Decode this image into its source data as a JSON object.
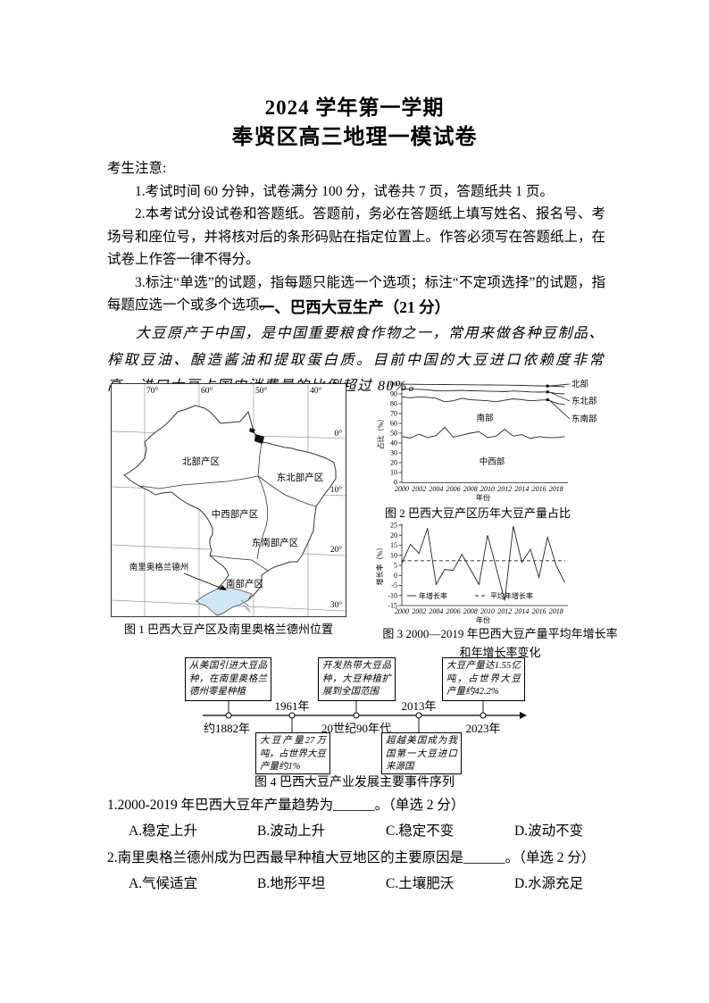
{
  "header": {
    "title_line1": "2024 学年第一学期",
    "title_line2": "奉贤区高三地理一模试卷"
  },
  "notice": {
    "heading": "考生注意:",
    "items": [
      "1.考试时间 60 分钟，试卷满分 100 分，试卷共 7 页，答题纸共 1 页。",
      "2.本考试分设试卷和答题纸。答题前，务必在答题纸上填写姓名、报名号、考场号和座位号，并将核对后的条形码贴在指定位置上。作答必须写在答题纸上，在试卷上作答一律不得分。",
      "3.标注“单选”的试题，指每题只能选一个选项；标注“不定项选择”的试题，指每题应选一个或多个选项。"
    ]
  },
  "section1": {
    "title": "一、巴西大豆生产（21 分）",
    "intro": "大豆原产于中国，是中国重要粮食作物之一，常用来做各种豆制品、榨取豆油、酿造酱油和提取蛋白质。目前中国的大豆进口依赖度非常高，进口大豆占国内消费量的比例超过 80%。"
  },
  "figure1": {
    "caption": "图 1 巴西大豆产区及南里奥格兰德州位置",
    "lon_labels": [
      "70°",
      "60°",
      "50°",
      "40°"
    ],
    "lat_labels": [
      "0°",
      "10°",
      "20°",
      "30°"
    ],
    "region_labels": [
      "北部产区",
      "东北部产区",
      "中西部产区",
      "东南部产区",
      "南部产区"
    ],
    "state_label": "南里奥格兰德州",
    "state_fill": "#cfe6f5"
  },
  "figure3": {
    "caption_line1": "图 3 2000—2019 年巴西大豆产量平均年增长率",
    "caption_line2": "和年增长率变化"
  },
  "figure4": {
    "caption": "图 4 巴西大豆产业发展主要事件序列",
    "years": [
      "约1882年",
      "1961年",
      "20世纪90年代",
      "2013年",
      "2023年"
    ],
    "events_above": [
      "从美国引进大豆品种，在南里奥格兰德州零星种植",
      "开发热带大豆品种，大豆种植扩展到全国范围",
      "大豆产量达1.55亿吨，占世界大豆产量约42.2%"
    ],
    "events_below": [
      "大豆产量27万吨，占世界大豆产量约1%",
      "超越美国成为我国第一大豆进口来源国"
    ]
  },
  "chart_data": [
    {
      "type": "line",
      "title": "图 2 巴西大豆产区历年大豆产量占比",
      "xlabel": "年份",
      "ylabel": "占比（%）",
      "ylim": [
        0,
        100
      ],
      "x": [
        2000,
        2001,
        2002,
        2003,
        2004,
        2005,
        2006,
        2007,
        2008,
        2009,
        2010,
        2011,
        2012,
        2013,
        2014,
        2015,
        2016,
        2017,
        2018,
        2019
      ],
      "xticks": [
        2000,
        2002,
        2004,
        2006,
        2008,
        2010,
        2012,
        2014,
        2016,
        2018
      ],
      "yticks": [
        0,
        10,
        20,
        30,
        40,
        50,
        60,
        70,
        80,
        90,
        100
      ],
      "grid": false,
      "series": [
        {
          "name": "北部上边界",
          "values": [
            99.8,
            99.8,
            99.7,
            99.6,
            99.6,
            99.5,
            99.4,
            99.4,
            99.3,
            99.2,
            99.1,
            99.0,
            98.9,
            98.8,
            98.6,
            98.4,
            98.2,
            98.0,
            97.6,
            97.3
          ]
        },
        {
          "name": "东北部上边界",
          "values": [
            95,
            94.8,
            94.6,
            94.2,
            93.2,
            93,
            93.3,
            93.5,
            93.2,
            93,
            92.8,
            92.5,
            92.3,
            93,
            92.5,
            92,
            91.8,
            92,
            90.5,
            90
          ]
        },
        {
          "name": "东南部上边界",
          "values": [
            87,
            86,
            87,
            86.5,
            85.5,
            82,
            83,
            85.5,
            84,
            83.5,
            83,
            82,
            83.5,
            85,
            84,
            83,
            83.5,
            84,
            80.5,
            79
          ]
        },
        {
          "name": "南部与中西部分界",
          "values": [
            46.5,
            45,
            49,
            45.5,
            47.5,
            56,
            46,
            48,
            50,
            51.5,
            45.5,
            47,
            54,
            47,
            48.5,
            44.5,
            46.5,
            45.5,
            45.5,
            46.5
          ]
        }
      ],
      "area_labels": [
        "南部",
        "中西部"
      ],
      "right_labels": [
        "北部",
        "东北部",
        "东南部"
      ]
    },
    {
      "type": "line",
      "title": "图 3 2000—2019 年巴西大豆产量平均年增长率和年增长率变化",
      "xlabel": "年份",
      "ylabel": "增长率（%）",
      "ylim": [
        -15,
        25
      ],
      "x": [
        2000,
        2001,
        2002,
        2003,
        2004,
        2005,
        2006,
        2007,
        2008,
        2009,
        2010,
        2011,
        2012,
        2013,
        2014,
        2015,
        2016,
        2017,
        2018,
        2019
      ],
      "xticks": [
        2000,
        2002,
        2004,
        2006,
        2008,
        2010,
        2012,
        2014,
        2016,
        2018
      ],
      "yticks": [
        -15,
        -10,
        -5,
        0,
        5,
        10,
        15,
        20,
        25
      ],
      "grid": false,
      "series": [
        {
          "name": "年增长率",
          "style": "solid",
          "values": [
            6,
            15.5,
            11,
            23.5,
            -4.5,
            3,
            2.5,
            10.5,
            3,
            -4.5,
            20,
            4,
            -12.5,
            24.5,
            6.5,
            13,
            -1,
            19,
            5,
            -3.5
          ]
        },
        {
          "name": "平均年增长率",
          "style": "dashed",
          "constant": 7.3
        }
      ],
      "legend": [
        "年增长率",
        "平均年增长率"
      ],
      "legend_position": "inside-bottom-left"
    }
  ],
  "questions": [
    {
      "text": "1.2000-2019 年巴西大豆年产量趋势为______。（单选 2 分）",
      "options": [
        "A.稳定上升",
        "B.波动上升",
        "C.稳定不变",
        "D.波动不变"
      ]
    },
    {
      "text": "2.南里奥格兰德州成为巴西最早种植大豆地区的主要原因是______。（单选 2 分）",
      "options": [
        "A.气候适宜",
        "B.地形平坦",
        "C.土壤肥沃",
        "D.水源充足"
      ]
    }
  ]
}
